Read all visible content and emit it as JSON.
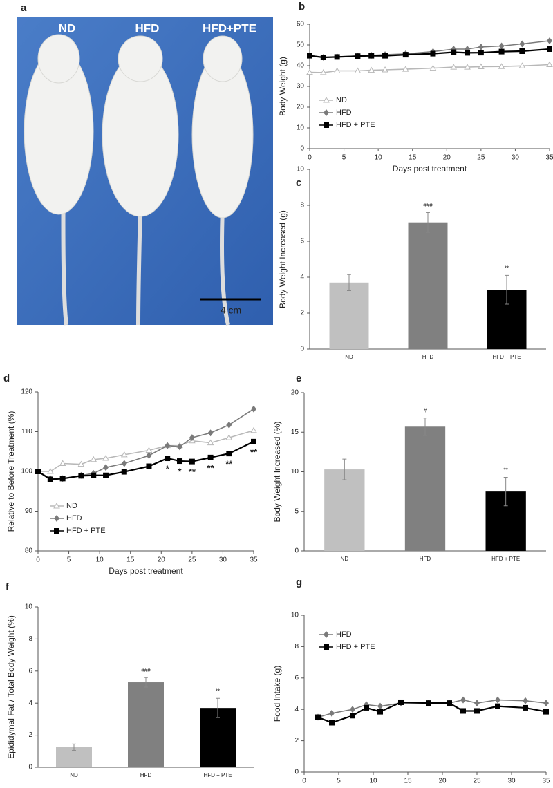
{
  "photo": {
    "panel": "a",
    "labels": [
      "ND",
      "HFD",
      "HFD+PTE"
    ],
    "scale_bar": "4 cm"
  },
  "chart_data": [
    {
      "panel": "b",
      "type": "line",
      "xlabel": "Days post treatment",
      "ylabel": "Body Weight (g)",
      "x": [
        0,
        2,
        4,
        7,
        9,
        11,
        14,
        18,
        21,
        23,
        25,
        28,
        31,
        35
      ],
      "series": [
        {
          "name": "ND",
          "color": "#b8b8b8",
          "marker": "triangle",
          "values": [
            36.8,
            36.7,
            37.5,
            37.5,
            37.8,
            38,
            38.3,
            38.8,
            39.3,
            39.3,
            39.5,
            39.6,
            39.9,
            40.5
          ]
        },
        {
          "name": "HFD",
          "color": "#7a7a7a",
          "marker": "diamond",
          "values": [
            45,
            44,
            44.3,
            44.7,
            45,
            45.3,
            45.7,
            46.8,
            48,
            48,
            49,
            49.5,
            50.5,
            52
          ]
        },
        {
          "name": "HFD + PTE",
          "color": "#000000",
          "marker": "square",
          "values": [
            44.8,
            44,
            44.2,
            44.6,
            44.8,
            44.8,
            45.3,
            45.8,
            46.5,
            46.2,
            46.3,
            46.8,
            47,
            48
          ]
        }
      ],
      "xlim": [
        0,
        35
      ],
      "xticks": [
        0,
        5,
        10,
        15,
        20,
        25,
        30,
        35
      ],
      "ylim": [
        0,
        60
      ],
      "yticks": [
        0,
        10,
        20,
        30,
        40,
        50,
        60
      ]
    },
    {
      "panel": "c",
      "type": "bar",
      "ylabel": "Body Weight Increased (g)",
      "categories": [
        "ND",
        "HFD",
        "HFD + PTE"
      ],
      "values": [
        3.7,
        7.05,
        3.3
      ],
      "errors": [
        0.45,
        0.55,
        0.8
      ],
      "colors": [
        "#c0c0c0",
        "#808080",
        "#000000"
      ],
      "annotations": [
        null,
        "###",
        "**"
      ],
      "ylim": [
        0,
        10
      ],
      "yticks": [
        0,
        2,
        4,
        6,
        8,
        10
      ]
    },
    {
      "panel": "d",
      "type": "line",
      "xlabel": "Days post treatment",
      "ylabel": "Relative to Before Treatment (%)",
      "x": [
        0,
        2,
        4,
        7,
        9,
        11,
        14,
        18,
        21,
        23,
        25,
        28,
        31,
        35
      ],
      "series": [
        {
          "name": "ND",
          "color": "#b8b8b8",
          "marker": "triangle",
          "values": [
            100,
            100,
            102,
            101.8,
            103,
            103.3,
            104.2,
            105.3,
            106.5,
            106.5,
            107.7,
            107.2,
            108.5,
            110.3
          ]
        },
        {
          "name": "HFD",
          "color": "#7a7a7a",
          "marker": "diamond",
          "values": [
            100,
            98.2,
            98.2,
            99,
            99.5,
            101,
            102,
            104,
            106.5,
            106.2,
            108.5,
            109.7,
            111.7,
            115.7
          ]
        },
        {
          "name": "HFD + PTE",
          "color": "#000000",
          "marker": "square",
          "values": [
            100,
            98,
            98.2,
            98.9,
            99,
            99,
            99.9,
            101.3,
            103.3,
            102.6,
            102.5,
            103.5,
            104.5,
            107.5
          ]
        }
      ],
      "annotations": [
        null,
        null,
        null,
        null,
        null,
        null,
        null,
        null,
        "*",
        "*",
        "**",
        "**",
        "**",
        "**"
      ],
      "xlim": [
        0,
        35
      ],
      "xticks": [
        0,
        5,
        10,
        15,
        20,
        25,
        30,
        35
      ],
      "ylim": [
        80,
        120
      ],
      "yticks": [
        80,
        90,
        100,
        110,
        120
      ]
    },
    {
      "panel": "e",
      "type": "bar",
      "ylabel": "Body Weight Increased (%)",
      "categories": [
        "ND",
        "HFD",
        "HFD + PTE"
      ],
      "values": [
        10.3,
        15.7,
        7.5
      ],
      "errors": [
        1.3,
        1.1,
        1.8
      ],
      "colors": [
        "#c0c0c0",
        "#808080",
        "#000000"
      ],
      "annotations": [
        null,
        "#",
        "**"
      ],
      "ylim": [
        0,
        20
      ],
      "yticks": [
        0,
        5,
        10,
        15,
        20
      ]
    },
    {
      "panel": "f",
      "type": "bar",
      "ylabel": "Epididymal  Fat / Total Body Weight (%)",
      "categories": [
        "ND",
        "HFD",
        "HFD + PTE"
      ],
      "values": [
        1.25,
        5.3,
        3.7
      ],
      "errors": [
        0.2,
        0.3,
        0.6
      ],
      "colors": [
        "#c0c0c0",
        "#808080",
        "#000000"
      ],
      "annotations": [
        null,
        "###",
        "**"
      ],
      "ylim": [
        0,
        10
      ],
      "yticks": [
        0,
        2,
        4,
        6,
        8,
        10
      ]
    },
    {
      "panel": "g",
      "type": "line",
      "xlabel": "Days post treatment",
      "ylabel": "Food Intake (g)",
      "x": [
        2,
        4,
        7,
        9,
        11,
        14,
        18,
        21,
        23,
        25,
        28,
        32,
        35
      ],
      "series": [
        {
          "name": "HFD",
          "color": "#7a7a7a",
          "marker": "diamond",
          "values": [
            3.5,
            3.75,
            4,
            4.3,
            4.2,
            4.4,
            4.4,
            4.4,
            4.6,
            4.4,
            4.6,
            4.55,
            4.4
          ]
        },
        {
          "name": "HFD + PTE",
          "color": "#000000",
          "marker": "square",
          "values": [
            3.5,
            3.15,
            3.6,
            4.1,
            3.85,
            4.45,
            4.4,
            4.4,
            3.9,
            3.9,
            4.2,
            4.1,
            3.85
          ]
        }
      ],
      "xlim": [
        0,
        35
      ],
      "xticks": [
        0,
        5,
        10,
        15,
        20,
        25,
        30,
        35
      ],
      "ylim": [
        0,
        10
      ],
      "yticks": [
        0,
        2,
        4,
        6,
        8,
        10
      ]
    }
  ]
}
